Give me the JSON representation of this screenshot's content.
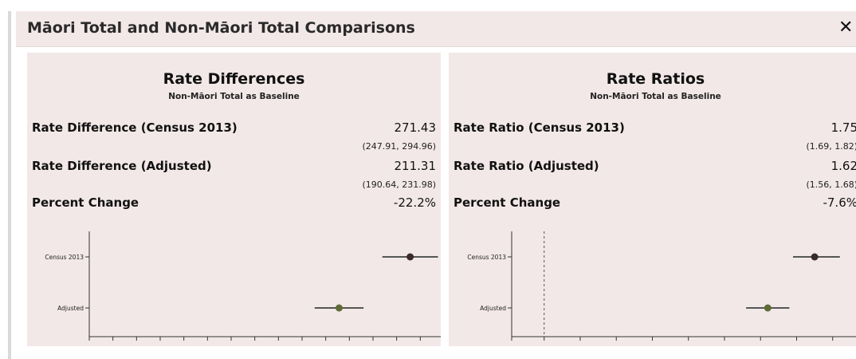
{
  "modal": {
    "title": "Māori Total and Non-Māori Total Comparisons",
    "close_symbol": "✕",
    "close_icon": "close-icon"
  },
  "rate_differences": {
    "title": "Rate Differences",
    "subtitle": "Non-Māori Total as Baseline",
    "rows": [
      {
        "label": "Rate Difference (Census 2013)",
        "value": "271.43",
        "ci": "(247.91, 294.96)"
      },
      {
        "label": "Rate Difference (Adjusted)",
        "value": "211.31",
        "ci": "(190.64, 231.98)"
      },
      {
        "label": "Percent Change",
        "value": "-22.2%"
      }
    ]
  },
  "rate_ratios": {
    "title": "Rate Ratios",
    "subtitle": "Non-Māori Total as Baseline",
    "rows": [
      {
        "label": "Rate Ratio (Census 2013)",
        "value": "1.75",
        "ci": "(1.69, 1.82)"
      },
      {
        "label": "Rate Ratio (Adjusted)",
        "value": "1.62",
        "ci": "(1.56, 1.68)"
      },
      {
        "label": "Percent Change",
        "value": "-7.6%"
      }
    ]
  },
  "chart_data": [
    {
      "type": "scatter",
      "categories": [
        "Census 2013",
        "Adjusted"
      ],
      "points": [
        {
          "category": "Census 2013",
          "value": 271.43,
          "lower": 247.91,
          "upper": 294.96
        },
        {
          "category": "Adjusted",
          "value": 211.31,
          "lower": 190.64,
          "upper": 231.98
        }
      ],
      "xlim": [
        0,
        300
      ],
      "x_ticks": [
        "0",
        "20",
        "40",
        "60",
        "80",
        "100",
        "120",
        "140",
        "160",
        "180",
        "200",
        "220",
        "240",
        "260",
        "280",
        "300"
      ],
      "grid": false,
      "colors": {
        "census": "#3b2a2a",
        "adjusted": "#5e6b36",
        "ci_line": "#555555"
      }
    },
    {
      "type": "scatter",
      "categories": [
        "Census 2013",
        "Adjusted"
      ],
      "points": [
        {
          "category": "Census 2013",
          "value": 1.75,
          "lower": 1.69,
          "upper": 1.82
        },
        {
          "category": "Adjusted",
          "value": 1.62,
          "lower": 1.56,
          "upper": 1.68
        }
      ],
      "xlim": [
        0.91,
        1.9
      ],
      "x_ticks": [
        "0.91",
        "1",
        "1.1",
        "1.2",
        "1.3",
        "1.4",
        "1.5",
        "1.6",
        "1.7",
        "1.8",
        "1.9"
      ],
      "reference_line": 1,
      "grid": false,
      "colors": {
        "census": "#3b2a2a",
        "adjusted": "#5e6b36",
        "ci_line": "#555555"
      }
    }
  ]
}
